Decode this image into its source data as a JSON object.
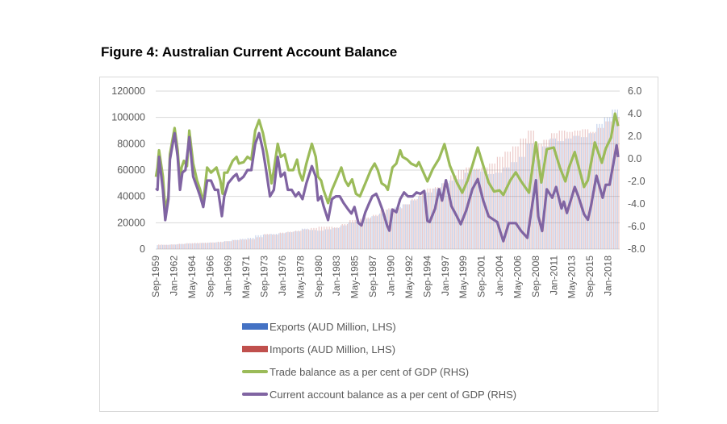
{
  "title": "Figure 4: Australian Current Account Balance",
  "chart_data": {
    "type": "bar+line",
    "title": "Figure 4: Australian Current Account Balance",
    "left_axis": {
      "ticks": [
        "0",
        "20000",
        "40000",
        "60000",
        "80000",
        "100000",
        "120000"
      ],
      "range": [
        0,
        120000
      ]
    },
    "right_axis": {
      "ticks": [
        "-8.0",
        "-6.0",
        "-4.0",
        "-2.0",
        "0.0",
        "2.0",
        "4.0",
        "6.0"
      ],
      "range": [
        -8,
        6
      ]
    },
    "x_range": [
      1959.67,
      2019.5
    ],
    "x_tick_labels": [
      "Sep-1959",
      "Jan-1962",
      "May-1964",
      "Sep-1966",
      "Jan-1969",
      "May-1971",
      "Sep-1973",
      "Jan-1976",
      "May-1978",
      "Sep-1980",
      "Jan-1983",
      "May-1985",
      "Sep-1987",
      "Jan-1990",
      "May-1992",
      "Sep-1994",
      "Jan-1997",
      "May-1999",
      "Sep-2001",
      "Jan-2004",
      "May-2006",
      "Sep-2008",
      "Jan-2011",
      "May-2013",
      "Sep-2015",
      "Jan-2018"
    ],
    "x_tick_years": [
      1959.67,
      1962.0,
      1964.33,
      1966.67,
      1969.0,
      1971.33,
      1973.67,
      1976.0,
      1978.33,
      1980.67,
      1983.0,
      1985.33,
      1987.67,
      1990.0,
      1992.33,
      1994.67,
      1997.0,
      1999.33,
      2001.67,
      2004.0,
      2006.33,
      2008.67,
      2011.0,
      2013.33,
      2015.67,
      2018.0
    ],
    "grid": "horizontal",
    "legend_position": "bottom",
    "bar_years": [
      1960,
      1961,
      1962,
      1963,
      1964,
      1965,
      1966,
      1967,
      1968,
      1969,
      1970,
      1971,
      1972,
      1973,
      1974,
      1975,
      1976,
      1977,
      1978,
      1979,
      1980,
      1981,
      1982,
      1983,
      1984,
      1985,
      1986,
      1987,
      1988,
      1989,
      1990,
      1991,
      1992,
      1993,
      1994,
      1995,
      1996,
      1997,
      1998,
      1999,
      2000,
      2001,
      2002,
      2003,
      2004,
      2005,
      2006,
      2007,
      2008,
      2009,
      2010,
      2011,
      2012,
      2013,
      2014,
      2015,
      2016,
      2017,
      2018,
      2019
    ],
    "series": [
      {
        "name": "Exports (AUD Million, LHS)",
        "kind": "bar",
        "axis": "left",
        "color": "#4472C4",
        "values": [
          3000,
          3200,
          3400,
          3800,
          4200,
          4300,
          4600,
          4900,
          5200,
          6000,
          7000,
          7800,
          8500,
          10500,
          11000,
          11500,
          12000,
          12800,
          13500,
          15500,
          14500,
          14000,
          15000,
          16000,
          18000,
          20000,
          21000,
          23000,
          25000,
          27000,
          30000,
          32000,
          34000,
          37000,
          40000,
          43000,
          46000,
          50000,
          52000,
          53000,
          58000,
          60000,
          59000,
          57000,
          58000,
          62000,
          66000,
          70000,
          80000,
          68000,
          78000,
          84000,
          82000,
          84000,
          86000,
          85000,
          88000,
          95000,
          100000,
          106000
        ]
      },
      {
        "name": "Imports (AUD Million, LHS)",
        "kind": "bar",
        "axis": "left",
        "color": "#C0504D",
        "values": [
          3500,
          3300,
          3600,
          4000,
          4500,
          4800,
          4900,
          5100,
          5600,
          6000,
          6800,
          7200,
          7600,
          9000,
          11500,
          11000,
          12500,
          13200,
          14000,
          15000,
          16000,
          17000,
          17000,
          16500,
          19000,
          22000,
          23000,
          24000,
          26000,
          30000,
          31000,
          31000,
          34000,
          38000,
          42000,
          46000,
          47000,
          50000,
          56000,
          60000,
          62000,
          61000,
          62000,
          65000,
          70000,
          74000,
          78000,
          84000,
          90000,
          80000,
          83000,
          88000,
          90000,
          89000,
          90000,
          91000,
          89000,
          92000,
          97000,
          100000
        ]
      },
      {
        "name": "Trade balance as a per cent of GDP (RHS)",
        "kind": "line",
        "axis": "right",
        "color": "#9BBB59",
        "points": [
          [
            1959.7,
            -1.6
          ],
          [
            1959.9,
            -0.77
          ],
          [
            1960.1,
            0.75
          ],
          [
            1960.6,
            -1.58
          ],
          [
            1960.9,
            -4.5
          ],
          [
            1961.3,
            -3.33
          ],
          [
            1961.5,
            0.4
          ],
          [
            1962.1,
            2.73
          ],
          [
            1962.5,
            0.75
          ],
          [
            1962.8,
            -2.17
          ],
          [
            1963.0,
            -0.77
          ],
          [
            1963.3,
            -0.18
          ],
          [
            1963.7,
            -0.65
          ],
          [
            1964.0,
            2.5
          ],
          [
            1964.5,
            -0.42
          ],
          [
            1965.0,
            -1.93
          ],
          [
            1965.4,
            -2.75
          ],
          [
            1965.8,
            -3.92
          ],
          [
            1966.3,
            -0.77
          ],
          [
            1966.8,
            -1.23
          ],
          [
            1967.5,
            -0.77
          ],
          [
            1968.0,
            -1.93
          ],
          [
            1968.3,
            -3.1
          ],
          [
            1968.5,
            -1.23
          ],
          [
            1968.9,
            -1.23
          ],
          [
            1969.6,
            -0.18
          ],
          [
            1970.1,
            0.17
          ],
          [
            1970.4,
            -0.42
          ],
          [
            1971.0,
            -0.3
          ],
          [
            1971.5,
            0.17
          ],
          [
            1972.0,
            -0.07
          ],
          [
            1972.5,
            2.5
          ],
          [
            1973.0,
            3.43
          ],
          [
            1973.5,
            2.27
          ],
          [
            1974.1,
            0.17
          ],
          [
            1974.6,
            -2.17
          ],
          [
            1974.9,
            -1.0
          ],
          [
            1975.4,
            1.33
          ],
          [
            1975.8,
            0.17
          ],
          [
            1976.3,
            0.4
          ],
          [
            1976.8,
            -1.0
          ],
          [
            1977.4,
            -1.0
          ],
          [
            1977.9,
            -0.07
          ],
          [
            1978.2,
            -1.23
          ],
          [
            1978.6,
            -1.93
          ],
          [
            1979.1,
            -0.42
          ],
          [
            1979.8,
            1.33
          ],
          [
            1980.3,
            0.17
          ],
          [
            1980.6,
            -1.58
          ],
          [
            1981.0,
            -1.93
          ],
          [
            1981.3,
            -2.75
          ],
          [
            1981.9,
            -3.92
          ],
          [
            1982.4,
            -2.75
          ],
          [
            1982.9,
            -1.93
          ],
          [
            1983.6,
            -0.77
          ],
          [
            1984.1,
            -1.93
          ],
          [
            1984.5,
            -2.4
          ],
          [
            1985.0,
            -1.82
          ],
          [
            1985.5,
            -3.1
          ],
          [
            1986.0,
            -3.33
          ],
          [
            1986.7,
            -2.17
          ],
          [
            1987.4,
            -1.0
          ],
          [
            1987.9,
            -0.42
          ],
          [
            1988.3,
            -1.0
          ],
          [
            1988.8,
            -2.17
          ],
          [
            1989.3,
            -2.4
          ],
          [
            1989.6,
            -2.75
          ],
          [
            1990.2,
            -0.77
          ],
          [
            1990.7,
            -0.42
          ],
          [
            1991.2,
            0.75
          ],
          [
            1991.5,
            0.17
          ],
          [
            1992.1,
            -0.07
          ],
          [
            1992.6,
            -0.42
          ],
          [
            1993.3,
            -0.65
          ],
          [
            1993.6,
            -0.3
          ],
          [
            1994.7,
            -2.0
          ],
          [
            1995.4,
            -0.9
          ],
          [
            1996.2,
            0.0
          ],
          [
            1996.9,
            1.3
          ],
          [
            1997.6,
            -0.6
          ],
          [
            1998.5,
            -2.1
          ],
          [
            1999.2,
            -3.0
          ],
          [
            1999.9,
            -1.9
          ],
          [
            2000.5,
            -0.6
          ],
          [
            2001.2,
            1.0
          ],
          [
            2001.9,
            -0.6
          ],
          [
            2002.6,
            -2.1
          ],
          [
            2003.3,
            -2.9
          ],
          [
            2004.0,
            -2.8
          ],
          [
            2004.5,
            -3.2
          ],
          [
            2005.4,
            -1.9
          ],
          [
            2006.1,
            -1.2
          ],
          [
            2006.8,
            -2.0
          ],
          [
            2007.8,
            -3.0
          ],
          [
            2008.7,
            1.45
          ],
          [
            2009.4,
            -2.1
          ],
          [
            2010.1,
            0.85
          ],
          [
            2011.0,
            1.0
          ],
          [
            2011.8,
            -0.8
          ],
          [
            2012.5,
            -2.0
          ],
          [
            2013.0,
            -0.7
          ],
          [
            2013.7,
            0.6
          ],
          [
            2014.4,
            -1.2
          ],
          [
            2014.9,
            -2.5
          ],
          [
            2015.4,
            -1.9
          ],
          [
            2016.3,
            1.45
          ],
          [
            2017.2,
            -0.35
          ],
          [
            2017.7,
            0.9
          ],
          [
            2018.4,
            1.9
          ],
          [
            2018.9,
            4.0
          ],
          [
            2019.3,
            2.9
          ]
        ]
      },
      {
        "name": "Current account balance as a per cent of GDP (RHS)",
        "kind": "line",
        "axis": "right",
        "color": "#8064A2",
        "points": [
          [
            1959.7,
            -2.6
          ],
          [
            1959.9,
            -2.75
          ],
          [
            1960.1,
            0.17
          ],
          [
            1960.6,
            -2.75
          ],
          [
            1960.9,
            -5.43
          ],
          [
            1961.3,
            -3.57
          ],
          [
            1961.5,
            -0.07
          ],
          [
            1962.1,
            2.27
          ],
          [
            1962.5,
            0.17
          ],
          [
            1962.8,
            -2.75
          ],
          [
            1963.1,
            -1.23
          ],
          [
            1963.5,
            -1.0
          ],
          [
            1964.0,
            1.92
          ],
          [
            1964.5,
            -1.58
          ],
          [
            1965.0,
            -2.52
          ],
          [
            1965.4,
            -3.33
          ],
          [
            1965.8,
            -4.27
          ],
          [
            1966.3,
            -1.93
          ],
          [
            1966.8,
            -1.93
          ],
          [
            1967.3,
            -2.75
          ],
          [
            1967.7,
            -2.75
          ],
          [
            1968.2,
            -5.08
          ],
          [
            1968.5,
            -3.33
          ],
          [
            1969.0,
            -2.17
          ],
          [
            1969.7,
            -1.58
          ],
          [
            1970.1,
            -1.35
          ],
          [
            1970.4,
            -1.93
          ],
          [
            1971.0,
            -1.58
          ],
          [
            1971.5,
            -1.0
          ],
          [
            1972.0,
            -1.0
          ],
          [
            1972.5,
            1.33
          ],
          [
            1973.0,
            2.27
          ],
          [
            1973.5,
            0.75
          ],
          [
            1973.9,
            -1.0
          ],
          [
            1974.4,
            -3.33
          ],
          [
            1974.9,
            -2.75
          ],
          [
            1975.4,
            0.17
          ],
          [
            1975.8,
            -1.58
          ],
          [
            1976.3,
            -1.23
          ],
          [
            1976.7,
            -2.75
          ],
          [
            1977.2,
            -2.75
          ],
          [
            1977.7,
            -3.33
          ],
          [
            1978.1,
            -2.98
          ],
          [
            1978.6,
            -3.57
          ],
          [
            1979.1,
            -2.17
          ],
          [
            1979.8,
            -0.65
          ],
          [
            1980.3,
            -1.58
          ],
          [
            1980.6,
            -3.68
          ],
          [
            1981.0,
            -3.33
          ],
          [
            1981.3,
            -4.15
          ],
          [
            1981.9,
            -5.43
          ],
          [
            1982.4,
            -3.57
          ],
          [
            1982.9,
            -3.33
          ],
          [
            1983.4,
            -3.33
          ],
          [
            1983.9,
            -3.92
          ],
          [
            1984.5,
            -4.5
          ],
          [
            1984.9,
            -4.85
          ],
          [
            1985.3,
            -4.27
          ],
          [
            1985.8,
            -5.67
          ],
          [
            1986.2,
            -5.9
          ],
          [
            1986.7,
            -4.73
          ],
          [
            1987.2,
            -3.92
          ],
          [
            1987.6,
            -3.33
          ],
          [
            1988.1,
            -3.1
          ],
          [
            1988.4,
            -3.57
          ],
          [
            1988.9,
            -4.5
          ],
          [
            1989.5,
            -5.9
          ],
          [
            1989.8,
            -6.37
          ],
          [
            1990.2,
            -4.5
          ],
          [
            1990.7,
            -4.73
          ],
          [
            1991.2,
            -3.57
          ],
          [
            1991.7,
            -2.98
          ],
          [
            1992.2,
            -3.33
          ],
          [
            1992.8,
            -3.33
          ],
          [
            1993.3,
            -2.98
          ],
          [
            1993.8,
            -3.1
          ],
          [
            1994.3,
            -2.85
          ],
          [
            1994.7,
            -5.5
          ],
          [
            1995.0,
            -5.6
          ],
          [
            1995.7,
            -4.4
          ],
          [
            1996.2,
            -2.7
          ],
          [
            1996.6,
            -3.7
          ],
          [
            1997.1,
            -1.9
          ],
          [
            1997.8,
            -4.2
          ],
          [
            1998.5,
            -5.1
          ],
          [
            1999.0,
            -5.8
          ],
          [
            1999.7,
            -4.6
          ],
          [
            2000.5,
            -2.7
          ],
          [
            2001.2,
            -1.8
          ],
          [
            2001.9,
            -3.7
          ],
          [
            2002.6,
            -5.1
          ],
          [
            2003.7,
            -5.6
          ],
          [
            2004.5,
            -7.3
          ],
          [
            2005.2,
            -5.7
          ],
          [
            2006.1,
            -5.7
          ],
          [
            2006.8,
            -6.4
          ],
          [
            2007.6,
            -7.0
          ],
          [
            2008.7,
            -1.9
          ],
          [
            2009.0,
            -5.1
          ],
          [
            2009.5,
            -6.4
          ],
          [
            2010.1,
            -2.7
          ],
          [
            2010.8,
            -3.45
          ],
          [
            2011.3,
            -2.5
          ],
          [
            2012.0,
            -4.4
          ],
          [
            2012.3,
            -3.8
          ],
          [
            2012.7,
            -4.8
          ],
          [
            2013.4,
            -3.2
          ],
          [
            2013.7,
            -2.5
          ],
          [
            2014.2,
            -3.4
          ],
          [
            2014.9,
            -4.9
          ],
          [
            2015.4,
            -5.4
          ],
          [
            2015.8,
            -4.2
          ],
          [
            2016.5,
            -1.5
          ],
          [
            2017.3,
            -3.45
          ],
          [
            2017.7,
            -2.3
          ],
          [
            2018.2,
            -2.3
          ],
          [
            2019.1,
            1.2
          ],
          [
            2019.3,
            0.15
          ]
        ]
      }
    ]
  }
}
